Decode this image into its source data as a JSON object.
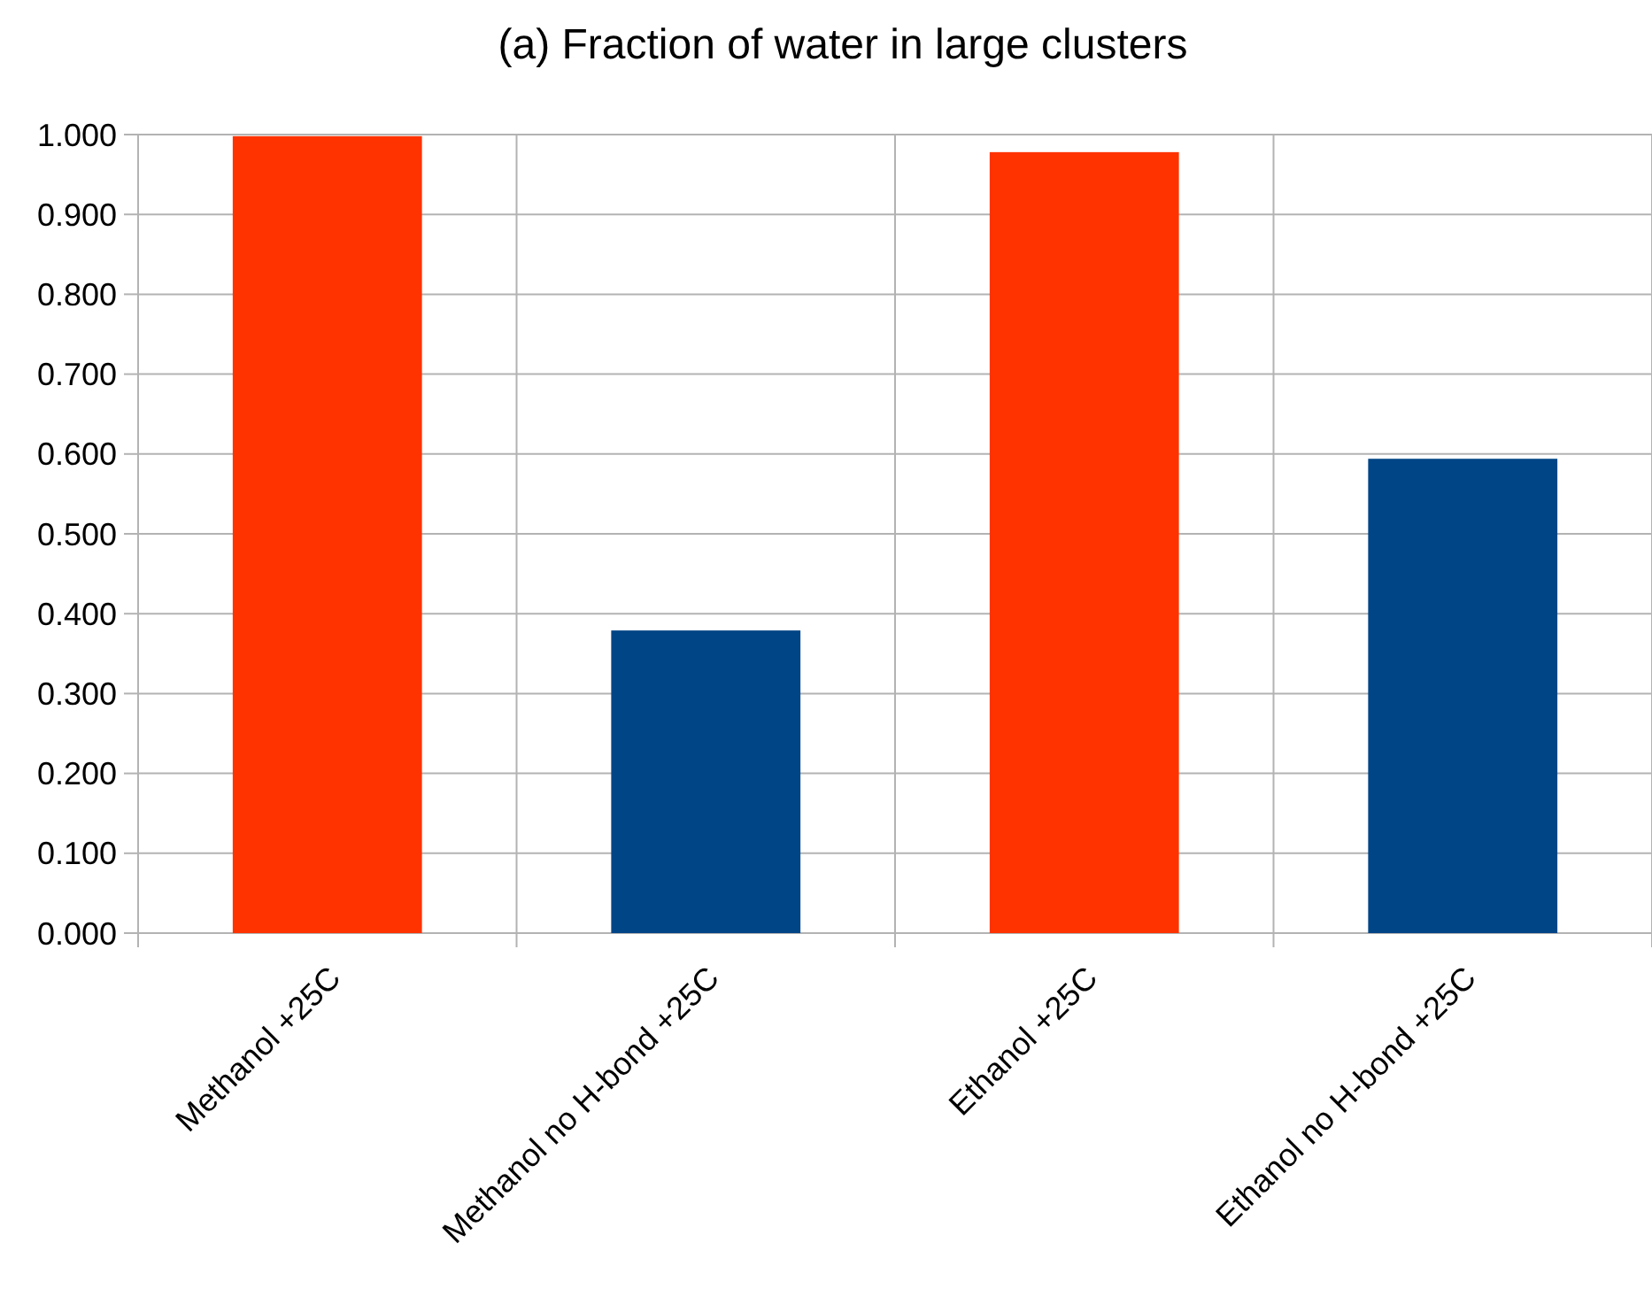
{
  "chart_data": {
    "type": "bar",
    "title": "(a) Fraction of water in large clusters",
    "categories": [
      "Methanol +25C",
      "Methanol no H-bond +25C",
      "Ethanol +25C",
      "Ethanol no H-bond +25C"
    ],
    "values": [
      0.998,
      0.379,
      0.978,
      0.594
    ],
    "colors": [
      "#ff3300",
      "#004586",
      "#ff3300",
      "#004586"
    ],
    "ylim": [
      0,
      1
    ],
    "yticks": [
      {
        "value": 0,
        "label": "0.000"
      },
      {
        "value": 0.1,
        "label": "0.100"
      },
      {
        "value": 0.2,
        "label": "0.200"
      },
      {
        "value": 0.3,
        "label": "0.300"
      },
      {
        "value": 0.4,
        "label": "0.400"
      },
      {
        "value": 0.5,
        "label": "0.500"
      },
      {
        "value": 0.6,
        "label": "0.600"
      },
      {
        "value": 0.7,
        "label": "0.700"
      },
      {
        "value": 0.8,
        "label": "0.800"
      },
      {
        "value": 0.9,
        "label": "0.900"
      },
      {
        "value": 1,
        "label": "1.000"
      }
    ],
    "grid": true
  }
}
